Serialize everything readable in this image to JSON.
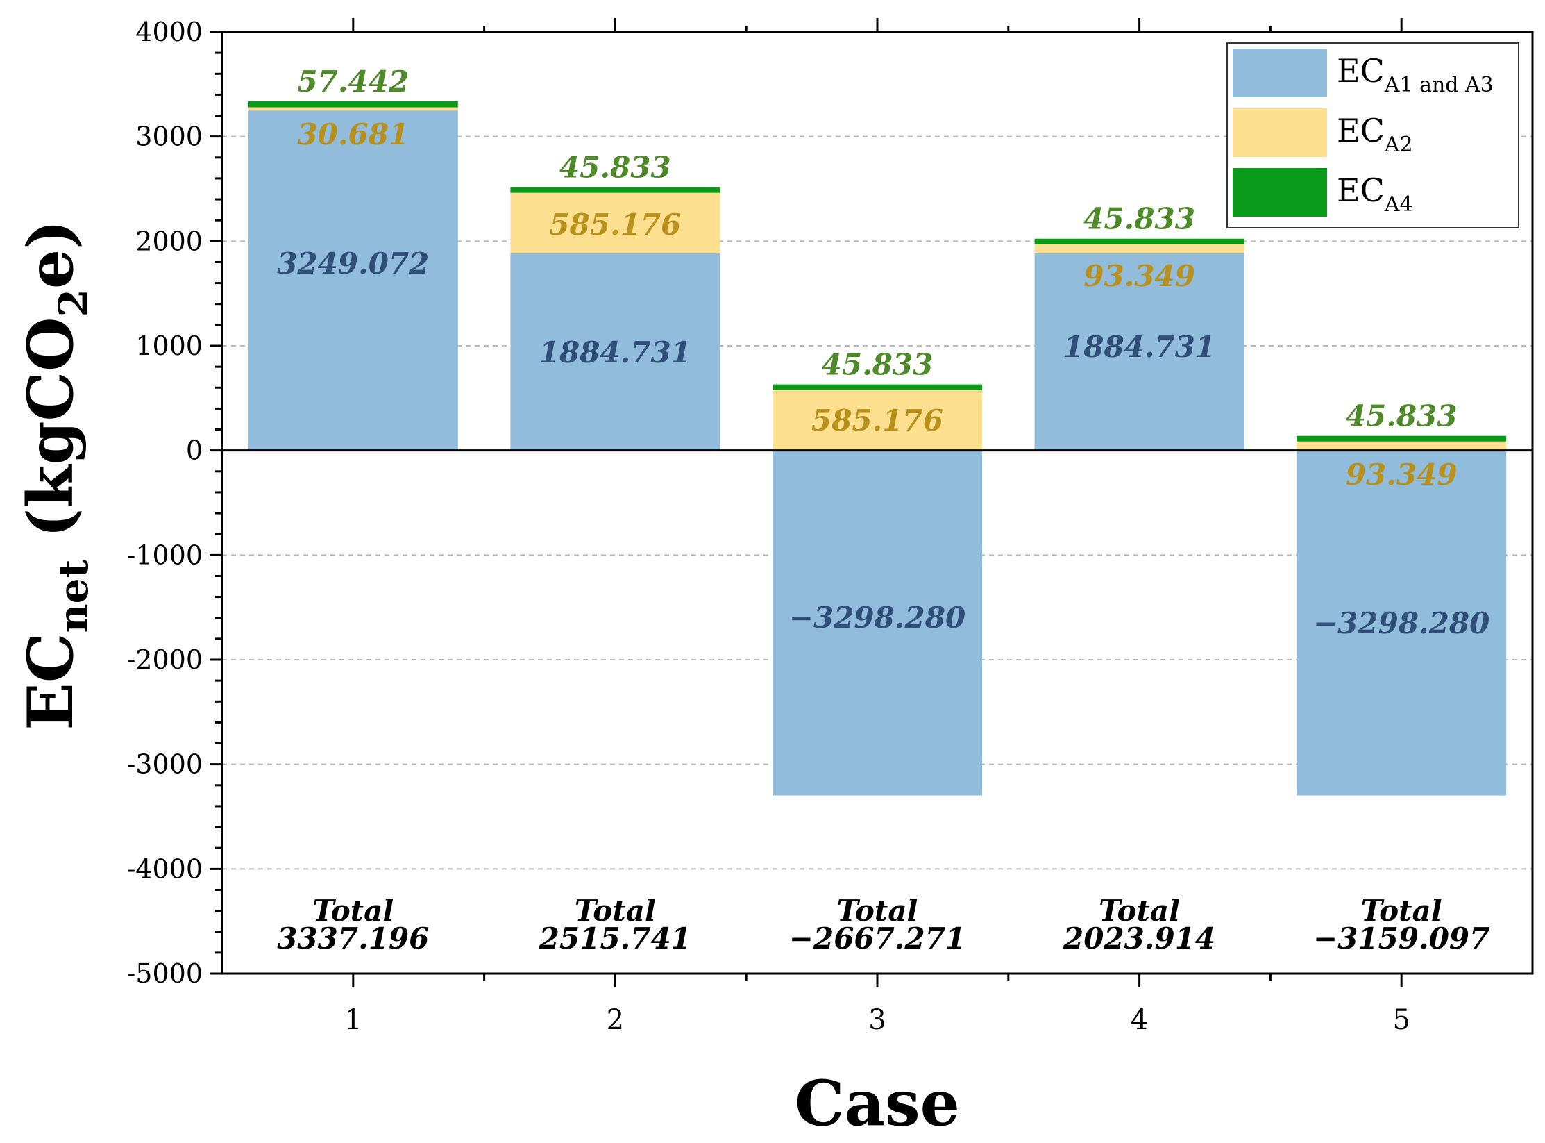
{
  "chart_data": {
    "type": "bar",
    "stacked": true,
    "categories": [
      "1",
      "2",
      "3",
      "4",
      "5"
    ],
    "xlabel": "Case",
    "ylabel": {
      "main": "EC",
      "sub": "net",
      "unit_open": " (kgCO",
      "unit_sub": "2",
      "unit_close": "e)"
    },
    "ylim": [
      -5000,
      4000
    ],
    "yticks": [
      4000,
      3000,
      2000,
      1000,
      0,
      -1000,
      -2000,
      -3000,
      -4000,
      -5000
    ],
    "ytick_labels": [
      "4000",
      "3000",
      "2000",
      "1000",
      "0",
      "-1000",
      "-2000",
      "-3000",
      "-4000",
      "-5000"
    ],
    "grid": "horizontal-dashed",
    "legend_position": "top-right",
    "series": [
      {
        "name": "EC_A1 and A3",
        "legend_main": "EC",
        "legend_sub": "A1 and A3",
        "color": "#92bcdb",
        "label_color": "#2f4f79",
        "values": [
          3249.072,
          1884.731,
          -3298.28,
          1884.731,
          -3298.28
        ],
        "labels": [
          "3249.072",
          "1884.731",
          "−3298.280",
          "1884.731",
          "−3298.280"
        ]
      },
      {
        "name": "EC_A2",
        "legend_main": "EC",
        "legend_sub": "A2",
        "color": "#fde08f",
        "label_color": "#b8901c",
        "values": [
          30.681,
          585.176,
          585.176,
          93.349,
          93.349
        ],
        "labels": [
          "30.681",
          "585.176",
          "585.176",
          "93.349",
          "93.349"
        ]
      },
      {
        "name": "EC_A4",
        "legend_main": "EC",
        "legend_sub": "A4",
        "color": "#0a9a1a",
        "label_color": "#4e8a2a",
        "values": [
          57.442,
          45.833,
          45.833,
          45.833,
          45.833
        ],
        "labels": [
          "57.442",
          "45.833",
          "45.833",
          "45.833",
          "45.833"
        ]
      }
    ],
    "totals": {
      "heading": "Total",
      "values": [
        3337.196,
        2515.741,
        -2667.271,
        2023.914,
        -3159.097
      ],
      "labels": [
        "3337.196",
        "2515.741",
        "−2667.271",
        "2023.914",
        "−3159.097"
      ]
    }
  }
}
